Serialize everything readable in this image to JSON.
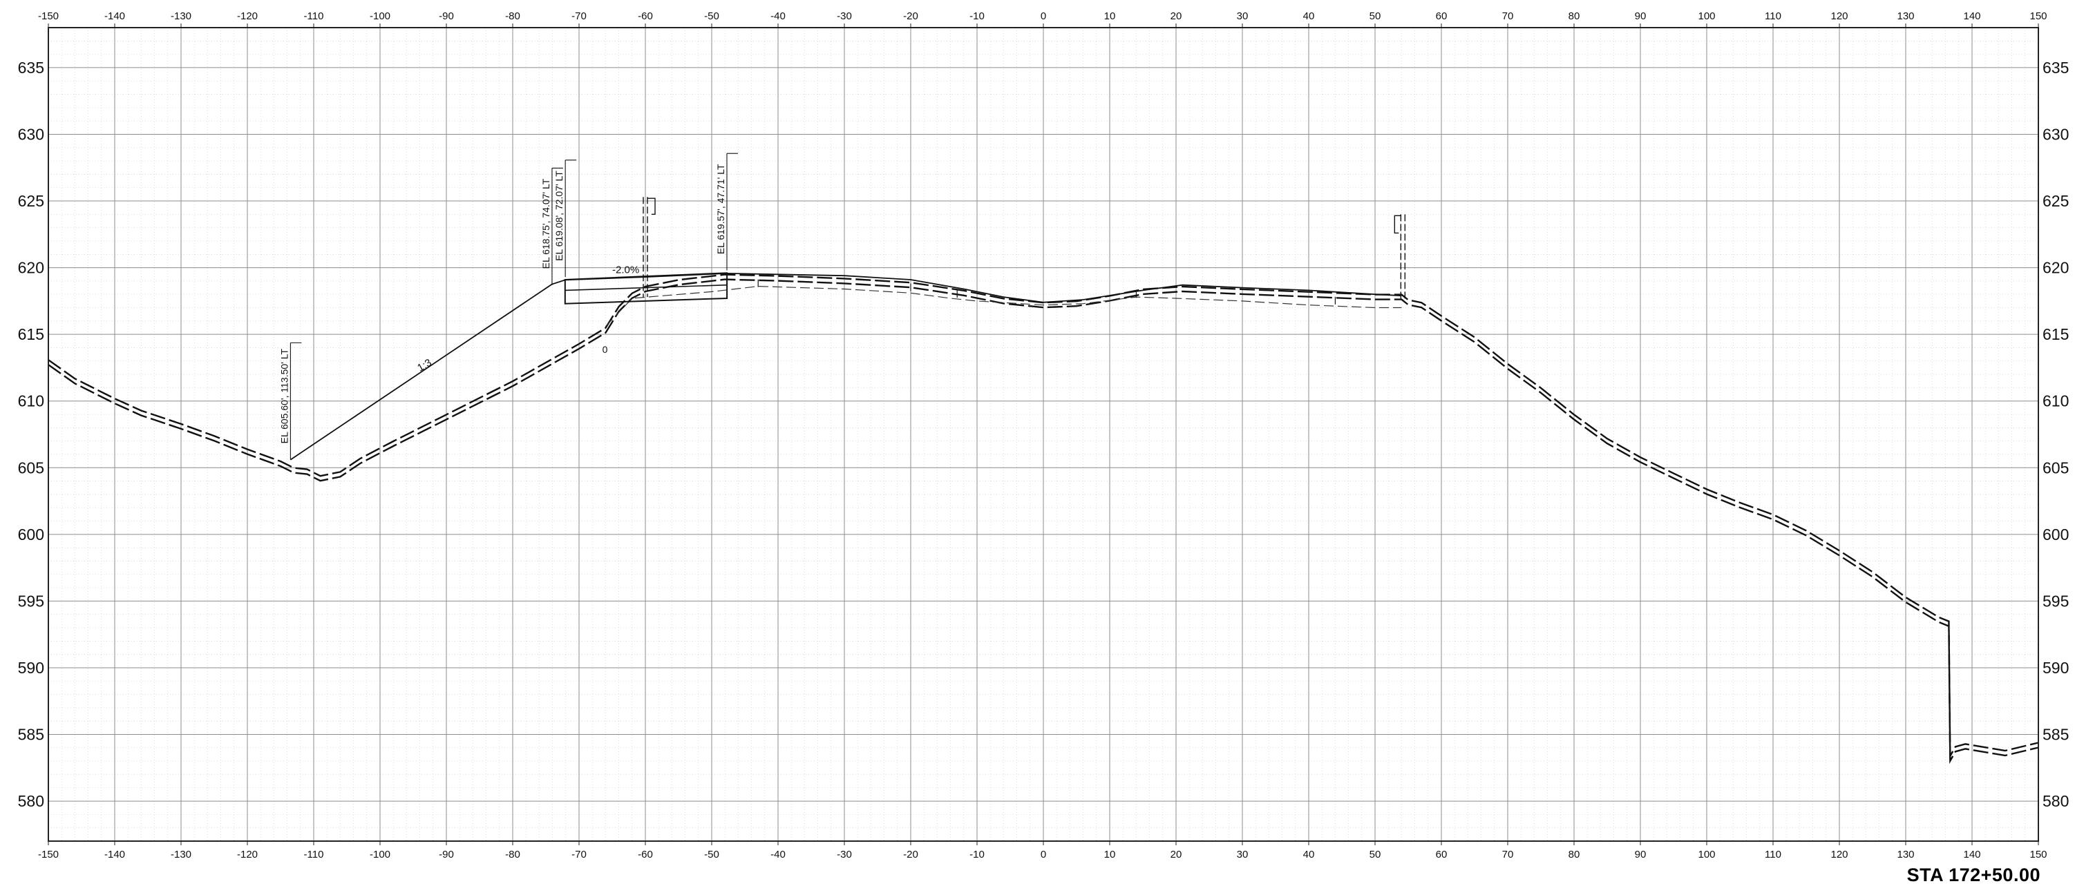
{
  "sheet": {
    "station": "STA 172+50.00"
  },
  "axes": {
    "x_min": -150,
    "x_max": 150,
    "x_step": 10,
    "y_min": 577,
    "y_max": 638,
    "y_major_step": 5,
    "y_minor_step": 1,
    "x_ticks": [
      -150,
      -140,
      -130,
      -120,
      -110,
      -100,
      -90,
      -80,
      -70,
      -60,
      -50,
      -40,
      -30,
      -20,
      -10,
      0,
      10,
      20,
      30,
      40,
      50,
      60,
      70,
      80,
      90,
      100,
      110,
      120,
      130,
      140,
      150
    ],
    "y_ticks": [
      580,
      585,
      590,
      595,
      600,
      605,
      610,
      615,
      620,
      625,
      630,
      635
    ],
    "colors": {
      "major_grid": "#8c8c8c",
      "minor_grid": "#c8c8c8",
      "frame": "#222222",
      "line": "#111111"
    }
  },
  "profiles": {
    "existing_ground": [
      [
        -150,
        612.9
      ],
      [
        -146,
        611.5
      ],
      [
        -140,
        610.0
      ],
      [
        -136,
        609.1
      ],
      [
        -130,
        608.1
      ],
      [
        -125,
        607.2
      ],
      [
        -120,
        606.2
      ],
      [
        -115,
        605.3
      ],
      [
        -113,
        604.8
      ],
      [
        -111,
        604.7
      ],
      [
        -109,
        604.2
      ],
      [
        -106,
        604.5
      ],
      [
        -103,
        605.5
      ],
      [
        -98,
        606.8
      ],
      [
        -90,
        608.8
      ],
      [
        -80,
        611.3
      ],
      [
        -70,
        614.1
      ],
      [
        -66,
        615.3
      ],
      [
        -64,
        616.9
      ],
      [
        -62,
        617.9
      ],
      [
        -60,
        618.4
      ],
      [
        -55,
        618.9
      ],
      [
        -48,
        619.3
      ],
      [
        -40,
        619.2
      ],
      [
        -30,
        619.0
      ],
      [
        -20,
        618.7
      ],
      [
        -12,
        618.1
      ],
      [
        -6,
        617.5
      ],
      [
        0,
        617.2
      ],
      [
        5,
        617.3
      ],
      [
        10,
        617.7
      ],
      [
        15,
        618.2
      ],
      [
        21,
        618.4
      ],
      [
        30,
        618.2
      ],
      [
        40,
        618.0
      ],
      [
        50,
        617.8
      ],
      [
        54,
        617.8
      ],
      [
        55,
        617.4
      ],
      [
        57,
        617.2
      ],
      [
        60,
        616.2
      ],
      [
        65,
        614.6
      ],
      [
        70,
        612.6
      ],
      [
        75,
        610.8
      ],
      [
        80,
        608.8
      ],
      [
        85,
        607.0
      ],
      [
        90,
        605.6
      ],
      [
        95,
        604.4
      ],
      [
        100,
        603.2
      ],
      [
        105,
        602.2
      ],
      [
        110,
        601.3
      ],
      [
        115,
        600.1
      ],
      [
        120,
        598.6
      ],
      [
        125,
        597.0
      ],
      [
        130,
        595.1
      ],
      [
        135,
        593.6
      ],
      [
        136.5,
        593.3
      ],
      [
        136.7,
        583.2
      ],
      [
        137.5,
        583.9
      ],
      [
        139,
        584.1
      ],
      [
        145,
        583.6
      ],
      [
        150,
        584.2
      ]
    ],
    "proposed_surface": [
      [
        -113.5,
        605.6
      ],
      [
        -74.1,
        618.75
      ],
      [
        -72.1,
        619.08
      ],
      [
        -60,
        619.3
      ],
      [
        -47.7,
        619.57
      ],
      [
        -30,
        619.4
      ],
      [
        -20,
        619.1
      ],
      [
        -12,
        618.4
      ],
      [
        -6,
        617.8
      ],
      [
        0,
        617.4
      ],
      [
        6,
        617.6
      ],
      [
        15,
        618.3
      ],
      [
        21,
        618.7
      ],
      [
        30,
        618.5
      ],
      [
        40,
        618.3
      ],
      [
        50,
        618.0
      ],
      [
        54,
        617.9
      ]
    ],
    "proposed_subgrade": [
      [
        -66,
        615.6
      ],
      [
        -62,
        617.7
      ],
      [
        -50,
        618.2
      ],
      [
        -43,
        618.6
      ],
      [
        -30,
        618.4
      ],
      [
        -20,
        618.1
      ],
      [
        -14,
        617.7
      ],
      [
        -10,
        617.5
      ],
      [
        0,
        617.2
      ],
      [
        6,
        617.3
      ],
      [
        14,
        617.8
      ],
      [
        20,
        617.7
      ],
      [
        30,
        617.5
      ],
      [
        40,
        617.2
      ],
      [
        50,
        617.0
      ],
      [
        54,
        617.0
      ]
    ]
  },
  "annotations": {
    "labels": [
      {
        "text": "EL 605.60', 113.50' LT",
        "x": -113.5,
        "y_base": 606.6
      },
      {
        "text": "EL 618.75', 74.07' LT",
        "x": -74.07,
        "y_base": 619.7
      },
      {
        "text": "EL 619.08', 72.07' LT",
        "x": -72.07,
        "y_base": 620.3
      },
      {
        "text": "EL 619.57', 47.71' LT",
        "x": -47.71,
        "y_base": 620.8
      }
    ],
    "slope": {
      "text": "1:3",
      "x": -94,
      "y": 612.2
    },
    "cross_slope": {
      "text": "-2.0%",
      "x": -65,
      "y": 619.6
    },
    "marker": {
      "text": "0",
      "x": -66.5,
      "y": 613.6
    }
  }
}
